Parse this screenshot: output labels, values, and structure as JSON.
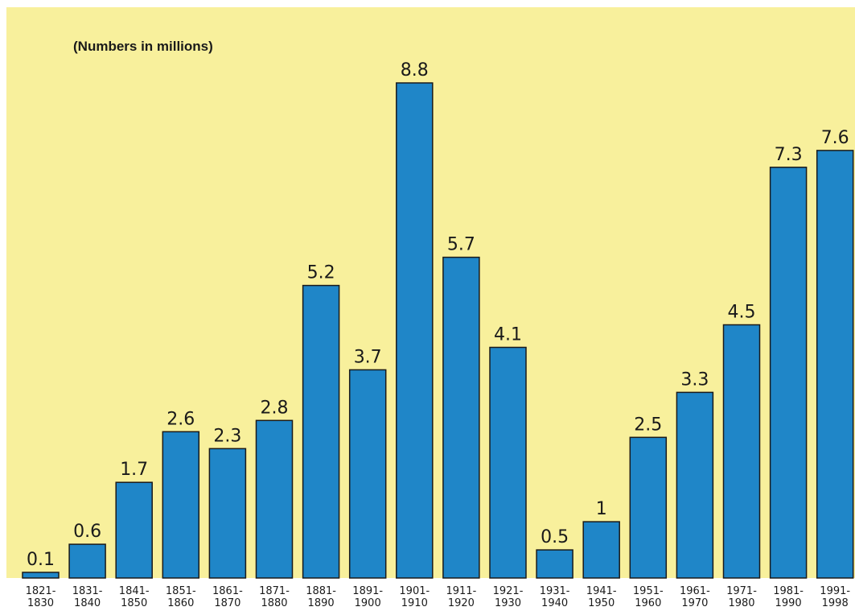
{
  "chart_data": {
    "type": "bar",
    "title": "",
    "subtitle": "(Numbers in millions)",
    "xlabel": "",
    "ylabel": "",
    "ylim": [
      0,
      8.8
    ],
    "grid": false,
    "legend": "none",
    "categories": [
      [
        "1821-",
        "1830"
      ],
      [
        "1831-",
        "1840"
      ],
      [
        "1841-",
        "1850"
      ],
      [
        "1851-",
        "1860"
      ],
      [
        "1861-",
        "1870"
      ],
      [
        "1871-",
        "1880"
      ],
      [
        "1881-",
        "1890"
      ],
      [
        "1891-",
        "1900"
      ],
      [
        "1901-",
        "1910"
      ],
      [
        "1911-",
        "1920"
      ],
      [
        "1921-",
        "1930"
      ],
      [
        "1931-",
        "1940"
      ],
      [
        "1941-",
        "1950"
      ],
      [
        "1951-",
        "1960"
      ],
      [
        "1961-",
        "1970"
      ],
      [
        "1971-",
        "1980"
      ],
      [
        "1981-",
        "1990"
      ],
      [
        "1991-",
        "1998"
      ]
    ],
    "values": [
      0.1,
      0.6,
      1.7,
      2.6,
      2.3,
      2.8,
      5.2,
      3.7,
      8.8,
      5.7,
      4.1,
      0.5,
      1,
      2.5,
      3.3,
      4.5,
      7.3,
      7.6
    ],
    "value_labels": [
      "0.1",
      "0.6",
      "1.7",
      "2.6",
      "2.3",
      "2.8",
      "5.2",
      "3.7",
      "8.8",
      "5.7",
      "4.1",
      "0.5",
      "1",
      "2.5",
      "3.3",
      "4.5",
      "7.3",
      "7.6"
    ],
    "colors": {
      "background": "#f8f09c",
      "bar_fill": "#1f86c8",
      "bar_stroke": "#1a1a1a",
      "text": "#1a1a1a"
    }
  }
}
